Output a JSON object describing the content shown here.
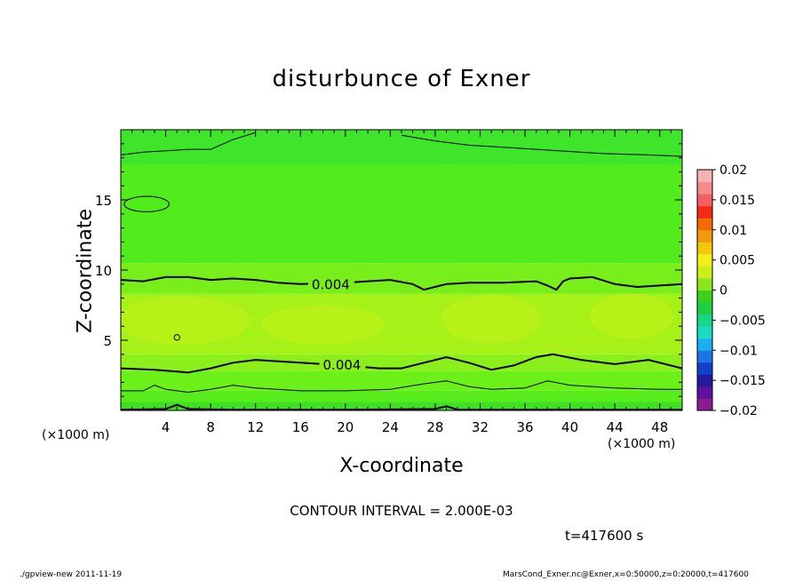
{
  "title": "disturbunce of Exner",
  "xlabel": "X-coordinate",
  "ylabel": "Z-coordinate",
  "x_unit_left": "(×1000 m)",
  "x_unit_right": "(×1000 m)",
  "contour_interval": "CONTOUR INTERVAL = 2.000E-03",
  "time_label": "t=417600 s",
  "footer_left": "./gpview-new   2011-11-19",
  "footer_right": "MarsCond_Exner.nc@Exner,x=0:50000,z=0:20000,t=417600",
  "chart_data": {
    "type": "heatmap",
    "title": "disturbunce of Exner",
    "xlabel": "X-coordinate",
    "ylabel": "Z-coordinate",
    "xlim": [
      0,
      50
    ],
    "ylim": [
      0,
      20
    ],
    "x_ticks": [
      4,
      8,
      12,
      16,
      20,
      24,
      28,
      32,
      36,
      40,
      44,
      48
    ],
    "y_ticks": [
      5,
      10,
      15
    ],
    "colorbar": {
      "range": [
        -0.02,
        0.02
      ],
      "ticks": [
        {
          "value": 0.02,
          "label": "0.02"
        },
        {
          "value": 0.015,
          "label": "0.015"
        },
        {
          "value": 0.01,
          "label": "0.01"
        },
        {
          "value": 0.005,
          "label": "0.005"
        },
        {
          "value": 0,
          "label": "0"
        },
        {
          "value": -0.005,
          "label": "−0.005"
        },
        {
          "value": -0.01,
          "label": "−0.01"
        },
        {
          "value": -0.015,
          "label": "−0.015"
        },
        {
          "value": -0.02,
          "label": "−0.02"
        }
      ],
      "levels": [
        "#8a1e8e",
        "#5c129c",
        "#241a9f",
        "#1340c8",
        "#1b75e6",
        "#1ab0ef",
        "#19dcc0",
        "#14d78a",
        "#1ecf45",
        "#3ad11e",
        "#8ce61a",
        "#c8f01a",
        "#f0f018",
        "#f5c60e",
        "#f39a0a",
        "#f46a06",
        "#f42a16",
        "#f45f5f",
        "#f58a8a",
        "#f7b2b2"
      ]
    },
    "fill_bands": [
      {
        "z": [
          0,
          0.6
        ],
        "color": "#3fe024"
      },
      {
        "z": [
          0.6,
          1.4
        ],
        "color": "#58ec1c"
      },
      {
        "z": [
          1.4,
          2.8
        ],
        "color": "#6cf01a"
      },
      {
        "z": [
          2.8,
          4.0
        ],
        "color": "#8aef1a"
      },
      {
        "z": [
          4.0,
          8.3
        ],
        "color": "#a6f218"
      },
      {
        "z": [
          8.3,
          10.5
        ],
        "color": "#78ef1a"
      },
      {
        "z": [
          10.5,
          17.5
        ],
        "color": "#52ec1c"
      },
      {
        "z": [
          17.5,
          20
        ],
        "color": "#3ee52a"
      }
    ],
    "blobs": [
      {
        "cx": 5.5,
        "cz": 6.4,
        "rx": 6,
        "rz": 1.7,
        "color": "#b8f218"
      },
      {
        "cx": 18,
        "cz": 6.1,
        "rx": 5.5,
        "rz": 1.4,
        "color": "#b8f218"
      },
      {
        "cx": 33,
        "cz": 6.5,
        "rx": 4.5,
        "rz": 1.7,
        "color": "#b8f218"
      },
      {
        "cx": 45.5,
        "cz": 6.7,
        "rx": 3.7,
        "rz": 1.6,
        "color": "#b8f218"
      }
    ],
    "contours": [
      {
        "level": 0.004,
        "label": "0.004",
        "label_x": 17.0,
        "thick": true,
        "points": [
          [
            0,
            9.3
          ],
          [
            2,
            9.2
          ],
          [
            4,
            9.5
          ],
          [
            6,
            9.5
          ],
          [
            8,
            9.3
          ],
          [
            10,
            9.4
          ],
          [
            12,
            9.3
          ],
          [
            14,
            9.1
          ],
          [
            16,
            9.0
          ],
          [
            20,
            9.1
          ],
          [
            22,
            9.2
          ],
          [
            24,
            9.3
          ],
          [
            26,
            9.0
          ],
          [
            27,
            8.6
          ],
          [
            29,
            9.0
          ],
          [
            31,
            9.1
          ],
          [
            34,
            9.1
          ],
          [
            37,
            9.2
          ],
          [
            38,
            8.9
          ],
          [
            38.8,
            8.6
          ],
          [
            39.4,
            9.2
          ],
          [
            40,
            9.4
          ],
          [
            42,
            9.5
          ],
          [
            44,
            9.0
          ],
          [
            46,
            8.8
          ],
          [
            48,
            8.9
          ],
          [
            50,
            9.0
          ]
        ]
      },
      {
        "level": 0.004,
        "label": "0.004",
        "label_x": 18.0,
        "thick": true,
        "points": [
          [
            0,
            3.0
          ],
          [
            3,
            2.9
          ],
          [
            6,
            2.7
          ],
          [
            8,
            3.0
          ],
          [
            10,
            3.4
          ],
          [
            12,
            3.6
          ],
          [
            16,
            3.4
          ],
          [
            20,
            3.2
          ],
          [
            23,
            3.0
          ],
          [
            25,
            3.0
          ],
          [
            27,
            3.4
          ],
          [
            29,
            3.8
          ],
          [
            31,
            3.4
          ],
          [
            33,
            2.9
          ],
          [
            35,
            3.2
          ],
          [
            37,
            3.8
          ],
          [
            38.5,
            4.0
          ],
          [
            41,
            3.6
          ],
          [
            44,
            3.3
          ],
          [
            47,
            3.6
          ],
          [
            50,
            3.0
          ]
        ]
      },
      {
        "level": 0.002,
        "thick": false,
        "points": [
          [
            0,
            1.4
          ],
          [
            2,
            1.4
          ],
          [
            3,
            1.8
          ],
          [
            4,
            1.5
          ],
          [
            6,
            1.3
          ],
          [
            8,
            1.5
          ],
          [
            10,
            1.8
          ],
          [
            12,
            1.6
          ],
          [
            16,
            1.4
          ],
          [
            20,
            1.4
          ],
          [
            24,
            1.5
          ],
          [
            27,
            1.9
          ],
          [
            29,
            2.1
          ],
          [
            31,
            1.7
          ],
          [
            33,
            1.5
          ],
          [
            36,
            1.6
          ],
          [
            38,
            2.1
          ],
          [
            40,
            1.8
          ],
          [
            44,
            1.6
          ],
          [
            48,
            1.5
          ],
          [
            50,
            1.5
          ]
        ]
      },
      {
        "level": 0.002,
        "thick": false,
        "points": [
          [
            0,
            18.2
          ],
          [
            2,
            18.4
          ],
          [
            4,
            18.5
          ],
          [
            6,
            18.6
          ],
          [
            8,
            18.6
          ],
          [
            10,
            19.3
          ],
          [
            12,
            19.8
          ]
        ]
      },
      {
        "level": 0.002,
        "thick": false,
        "points": [
          [
            25,
            19.6
          ],
          [
            28,
            19.2
          ],
          [
            31,
            18.9
          ],
          [
            35,
            18.7
          ],
          [
            39,
            18.5
          ],
          [
            43,
            18.3
          ],
          [
            47,
            18.2
          ],
          [
            50,
            18.1
          ]
        ]
      },
      {
        "level": 0,
        "thick": true,
        "points": [
          [
            0,
            0.05
          ],
          [
            4,
            0.1
          ],
          [
            5,
            0.4
          ],
          [
            6,
            0.1
          ],
          [
            10,
            0.05
          ],
          [
            20,
            0.05
          ],
          [
            28,
            0.1
          ],
          [
            29,
            0.3
          ],
          [
            30,
            0.05
          ],
          [
            40,
            0.05
          ],
          [
            50,
            0.05
          ]
        ]
      }
    ],
    "closed_contours": [
      {
        "level": 0.002,
        "cx": 2.3,
        "cz": 14.7,
        "rx": 2.0,
        "rz": 0.55
      },
      {
        "level": 0.006,
        "cx": 5.0,
        "cz": 5.2,
        "rx": 0.25,
        "rz": 0.2
      }
    ]
  }
}
